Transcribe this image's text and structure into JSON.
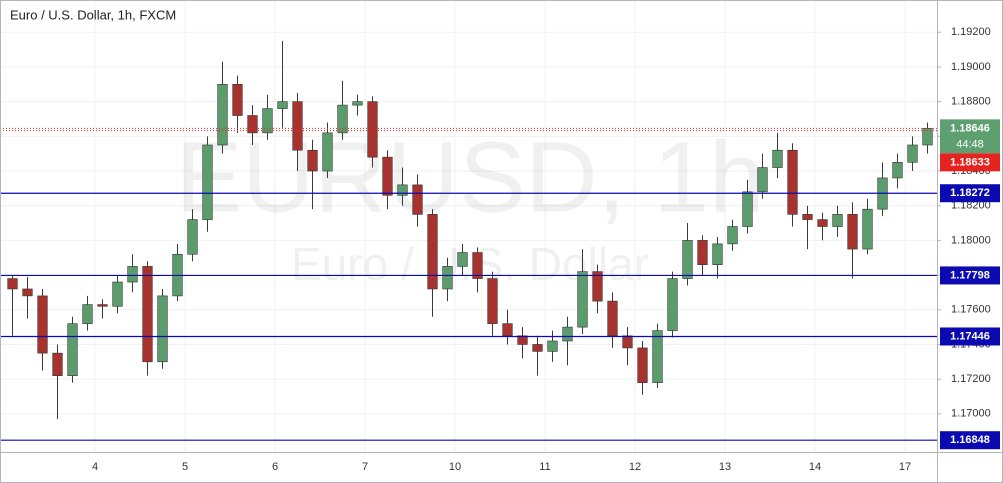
{
  "chart_data": {
    "type": "candlestick",
    "title": "Euro / U.S. Dollar, 1h, FXCM",
    "watermark": "EURUSD, 1h",
    "watermark_subtitle": "Euro / U.S. Dollar",
    "categories": [
      null,
      null,
      null,
      null,
      null,
      null,
      "4",
      null,
      null,
      null,
      null,
      null,
      "5",
      null,
      null,
      null,
      null,
      null,
      "6",
      null,
      null,
      null,
      null,
      null,
      "7",
      null,
      null,
      null,
      null,
      null,
      "10",
      null,
      null,
      null,
      null,
      null,
      "11",
      null,
      null,
      null,
      null,
      null,
      "12",
      null,
      null,
      null,
      null,
      null,
      "13",
      null,
      null,
      null,
      null,
      null,
      "14",
      null,
      null,
      null,
      null,
      null,
      "17",
      null
    ],
    "open": [
      1.1778,
      1.1772,
      1.1768,
      1.1735,
      1.1722,
      1.1752,
      1.1763,
      1.1762,
      1.1776,
      1.1785,
      1.173,
      1.1768,
      1.1792,
      1.1812,
      1.1855,
      1.189,
      1.1872,
      1.1862,
      1.1876,
      1.188,
      1.1852,
      1.184,
      1.1862,
      1.1878,
      1.188,
      1.1848,
      1.1826,
      1.1832,
      1.1815,
      1.1772,
      1.1785,
      1.1793,
      1.1778,
      1.1752,
      1.1745,
      1.174,
      1.1736,
      1.1742,
      1.175,
      1.1782,
      1.1765,
      1.1745,
      1.1738,
      1.1718,
      1.1748,
      1.1778,
      1.18,
      1.1786,
      1.1798,
      1.1808,
      1.1828,
      1.1842,
      1.1852,
      1.1815,
      1.1812,
      1.1808,
      1.1815,
      1.1795,
      1.1818,
      1.1836,
      1.1845,
      1.1855
    ],
    "high": [
      1.178,
      1.1779,
      1.1772,
      1.174,
      1.1756,
      1.1768,
      1.1766,
      1.178,
      1.1792,
      1.1788,
      1.1772,
      1.1798,
      1.1818,
      1.186,
      1.1903,
      1.1895,
      1.1878,
      1.1884,
      1.1915,
      1.1885,
      1.1858,
      1.1868,
      1.1892,
      1.1884,
      1.1883,
      1.1852,
      1.1842,
      1.1838,
      1.1818,
      1.179,
      1.1798,
      1.1796,
      1.1782,
      1.176,
      1.175,
      1.1745,
      1.1748,
      1.1756,
      1.1795,
      1.1786,
      1.177,
      1.175,
      1.1742,
      1.1752,
      1.1782,
      1.181,
      1.1803,
      1.1802,
      1.1812,
      1.1835,
      1.185,
      1.1862,
      1.1856,
      1.182,
      1.1816,
      1.182,
      1.1822,
      1.1824,
      1.1845,
      1.185,
      1.186,
      1.1868
    ],
    "low": [
      1.1745,
      1.1755,
      1.1725,
      1.1697,
      1.1718,
      1.1748,
      1.1755,
      1.1758,
      1.177,
      1.1722,
      1.1726,
      1.1765,
      1.1788,
      1.1805,
      1.185,
      1.1862,
      1.1855,
      1.1858,
      1.1865,
      1.184,
      1.1818,
      1.1836,
      1.1858,
      1.1872,
      1.1842,
      1.1818,
      1.182,
      1.1808,
      1.1756,
      1.1765,
      1.178,
      1.177,
      1.1745,
      1.174,
      1.1732,
      1.1722,
      1.173,
      1.1728,
      1.1746,
      1.1758,
      1.1738,
      1.1728,
      1.1711,
      1.1715,
      1.1744,
      1.1774,
      1.178,
      1.1778,
      1.1794,
      1.1804,
      1.1824,
      1.1836,
      1.1808,
      1.1795,
      1.18,
      1.1802,
      1.1778,
      1.1792,
      1.1814,
      1.183,
      1.184,
      1.185
    ],
    "close": [
      1.1772,
      1.1768,
      1.1735,
      1.1722,
      1.1752,
      1.1763,
      1.1762,
      1.1776,
      1.1785,
      1.173,
      1.1768,
      1.1792,
      1.1812,
      1.1855,
      1.189,
      1.1872,
      1.1862,
      1.1876,
      1.188,
      1.1852,
      1.184,
      1.1862,
      1.1878,
      1.188,
      1.1848,
      1.1826,
      1.1832,
      1.1815,
      1.1772,
      1.1785,
      1.1793,
      1.1778,
      1.1752,
      1.1745,
      1.174,
      1.1736,
      1.1742,
      1.175,
      1.1782,
      1.1765,
      1.1745,
      1.1738,
      1.1718,
      1.1748,
      1.1778,
      1.18,
      1.1786,
      1.1798,
      1.1808,
      1.1828,
      1.1842,
      1.1852,
      1.1815,
      1.1812,
      1.1808,
      1.1815,
      1.1795,
      1.1818,
      1.1836,
      1.1845,
      1.1855,
      1.18646
    ],
    "up_color": "#5b9c6c",
    "down_color": "#a8322d",
    "wick_color": "#3a3a3a",
    "ylim": [
      1.1678,
      1.19386
    ],
    "yticks": [
      {
        "value": 1.192,
        "label": "1.19200"
      },
      {
        "value": 1.19,
        "label": "1.19000"
      },
      {
        "value": 1.188,
        "label": "1.18800"
      },
      {
        "value": 1.186,
        "label": "1.18600"
      },
      {
        "value": 1.184,
        "label": "1.18400"
      },
      {
        "value": 1.182,
        "label": "1.18200"
      },
      {
        "value": 1.18,
        "label": "1.18000"
      },
      {
        "value": 1.178,
        "label": "1.17800"
      },
      {
        "value": 1.176,
        "label": "1.17600"
      },
      {
        "value": 1.174,
        "label": "1.17400"
      },
      {
        "value": 1.172,
        "label": "1.17200"
      },
      {
        "value": 1.17,
        "label": "1.17000"
      }
    ],
    "grid": true,
    "levels": [
      1.18272,
      1.17798,
      1.17446,
      1.16848
    ],
    "level_color": "#0a0ab0",
    "last_price": 1.18646,
    "countdown": "44:48",
    "last_price_color": "#5e9f70",
    "bid_price": 1.18633,
    "bid_price_color": "#e5241f"
  }
}
